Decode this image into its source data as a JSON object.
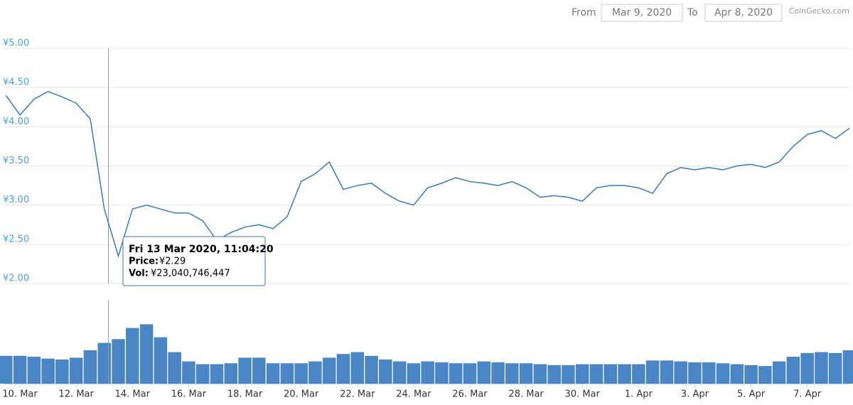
{
  "header": {
    "from_label": "From",
    "from_date": "Mar 9, 2020",
    "to_label": "To",
    "to_date": "Apr 8, 2020",
    "brand": "CoinGecko.com"
  },
  "chart_data": {
    "type": "line",
    "x": [
      "2020-03-09T12:00",
      "2020-03-10T00:00",
      "2020-03-10T12:00",
      "2020-03-11T00:00",
      "2020-03-11T12:00",
      "2020-03-12T00:00",
      "2020-03-12T12:00",
      "2020-03-13T00:00",
      "2020-03-13T12:00",
      "2020-03-14T00:00",
      "2020-03-14T12:00",
      "2020-03-15T00:00",
      "2020-03-15T12:00",
      "2020-03-16T00:00",
      "2020-03-16T12:00",
      "2020-03-17T00:00",
      "2020-03-17T12:00",
      "2020-03-18T00:00",
      "2020-03-18T12:00",
      "2020-03-19T00:00",
      "2020-03-19T12:00",
      "2020-03-20T00:00",
      "2020-03-20T12:00",
      "2020-03-21T00:00",
      "2020-03-21T12:00",
      "2020-03-22T00:00",
      "2020-03-22T12:00",
      "2020-03-23T00:00",
      "2020-03-23T12:00",
      "2020-03-24T00:00",
      "2020-03-24T12:00",
      "2020-03-25T00:00",
      "2020-03-25T12:00",
      "2020-03-26T00:00",
      "2020-03-26T12:00",
      "2020-03-27T00:00",
      "2020-03-27T12:00",
      "2020-03-28T00:00",
      "2020-03-28T12:00",
      "2020-03-29T00:00",
      "2020-03-29T12:00",
      "2020-03-30T00:00",
      "2020-03-30T12:00",
      "2020-03-31T00:00",
      "2020-03-31T12:00",
      "2020-04-01T00:00",
      "2020-04-01T12:00",
      "2020-04-02T00:00",
      "2020-04-02T12:00",
      "2020-04-03T00:00",
      "2020-04-03T12:00",
      "2020-04-04T00:00",
      "2020-04-04T12:00",
      "2020-04-05T00:00",
      "2020-04-05T12:00",
      "2020-04-06T00:00",
      "2020-04-06T12:00",
      "2020-04-07T00:00",
      "2020-04-07T12:00",
      "2020-04-08T00:00",
      "2020-04-08T12:00"
    ],
    "series": [
      {
        "name": "Price",
        "color": "#3b7ab8",
        "values": [
          4.4,
          4.15,
          4.35,
          4.45,
          4.38,
          4.3,
          4.1,
          2.95,
          2.35,
          2.95,
          3.0,
          2.95,
          2.9,
          2.9,
          2.8,
          2.55,
          2.65,
          2.72,
          2.75,
          2.7,
          2.85,
          3.3,
          3.4,
          3.55,
          3.2,
          3.25,
          3.28,
          3.15,
          3.05,
          3.0,
          3.22,
          3.28,
          3.35,
          3.3,
          3.28,
          3.25,
          3.3,
          3.22,
          3.1,
          3.12,
          3.1,
          3.05,
          3.22,
          3.25,
          3.25,
          3.22,
          3.15,
          3.4,
          3.48,
          3.45,
          3.48,
          3.45,
          3.5,
          3.52,
          3.48,
          3.55,
          3.75,
          3.9,
          3.95,
          3.85,
          3.98
        ]
      },
      {
        "name": "Vol",
        "type": "bar",
        "axis": "y2",
        "color": "#4a86c5",
        "values": [
          15000000000,
          15000000000,
          14500000000,
          13500000000,
          13000000000,
          14000000000,
          18000000000,
          22000000000,
          24000000000,
          30000000000,
          32000000000,
          25000000000,
          17000000000,
          12000000000,
          10500000000,
          10500000000,
          11000000000,
          14000000000,
          14000000000,
          11000000000,
          11000000000,
          11000000000,
          12000000000,
          14000000000,
          16000000000,
          17000000000,
          15000000000,
          13000000000,
          12000000000,
          11000000000,
          12000000000,
          11500000000,
          11000000000,
          11000000000,
          12000000000,
          11500000000,
          11000000000,
          11000000000,
          10500000000,
          10000000000,
          10000000000,
          10500000000,
          10500000000,
          10500000000,
          10500000000,
          10500000000,
          12500000000,
          12500000000,
          12000000000,
          11500000000,
          11500000000,
          11000000000,
          10500000000,
          10000000000,
          9500000000,
          12000000000,
          14500000000,
          16500000000,
          17000000000,
          16500000000,
          18000000000
        ]
      }
    ],
    "xlim": [
      "2020-03-09T10:00",
      "2020-04-08T12:00"
    ],
    "xticks": [
      {
        "value": "2020-03-10T00:00",
        "label": "10. Mar"
      },
      {
        "value": "2020-03-12T00:00",
        "label": "12. Mar"
      },
      {
        "value": "2020-03-14T00:00",
        "label": "14. Mar"
      },
      {
        "value": "2020-03-16T00:00",
        "label": "16. Mar"
      },
      {
        "value": "2020-03-18T00:00",
        "label": "18. Mar"
      },
      {
        "value": "2020-03-20T00:00",
        "label": "20. Mar"
      },
      {
        "value": "2020-03-22T00:00",
        "label": "22. Mar"
      },
      {
        "value": "2020-03-24T00:00",
        "label": "24. Mar"
      },
      {
        "value": "2020-03-26T00:00",
        "label": "26. Mar"
      },
      {
        "value": "2020-03-28T00:00",
        "label": "28. Mar"
      },
      {
        "value": "2020-03-30T00:00",
        "label": "30. Mar"
      },
      {
        "value": "2020-04-01T00:00",
        "label": "1. Apr"
      },
      {
        "value": "2020-04-03T00:00",
        "label": "3. Apr"
      },
      {
        "value": "2020-04-05T00:00",
        "label": "5. Apr"
      },
      {
        "value": "2020-04-07T00:00",
        "label": "7. Apr"
      }
    ],
    "ylim": [
      2,
      5
    ],
    "yticks": [
      {
        "value": 2,
        "label": "¥2.00"
      },
      {
        "value": 2.5,
        "label": "¥2.50"
      },
      {
        "value": 3,
        "label": "¥3.00"
      },
      {
        "value": 3.5,
        "label": "¥3.50"
      },
      {
        "value": 4,
        "label": "¥4.00"
      },
      {
        "value": 4.5,
        "label": "¥4.50"
      },
      {
        "value": 5,
        "label": "¥5.00"
      }
    ],
    "y2lim": [
      0,
      44000000000
    ],
    "grid": true,
    "tooltip": {
      "time": "Fri 13 Mar 2020, 11:04:20",
      "price_label": "Price:",
      "price": "¥2.29",
      "vol_label": "Vol:",
      "vol": "¥23,040,746,447"
    }
  }
}
